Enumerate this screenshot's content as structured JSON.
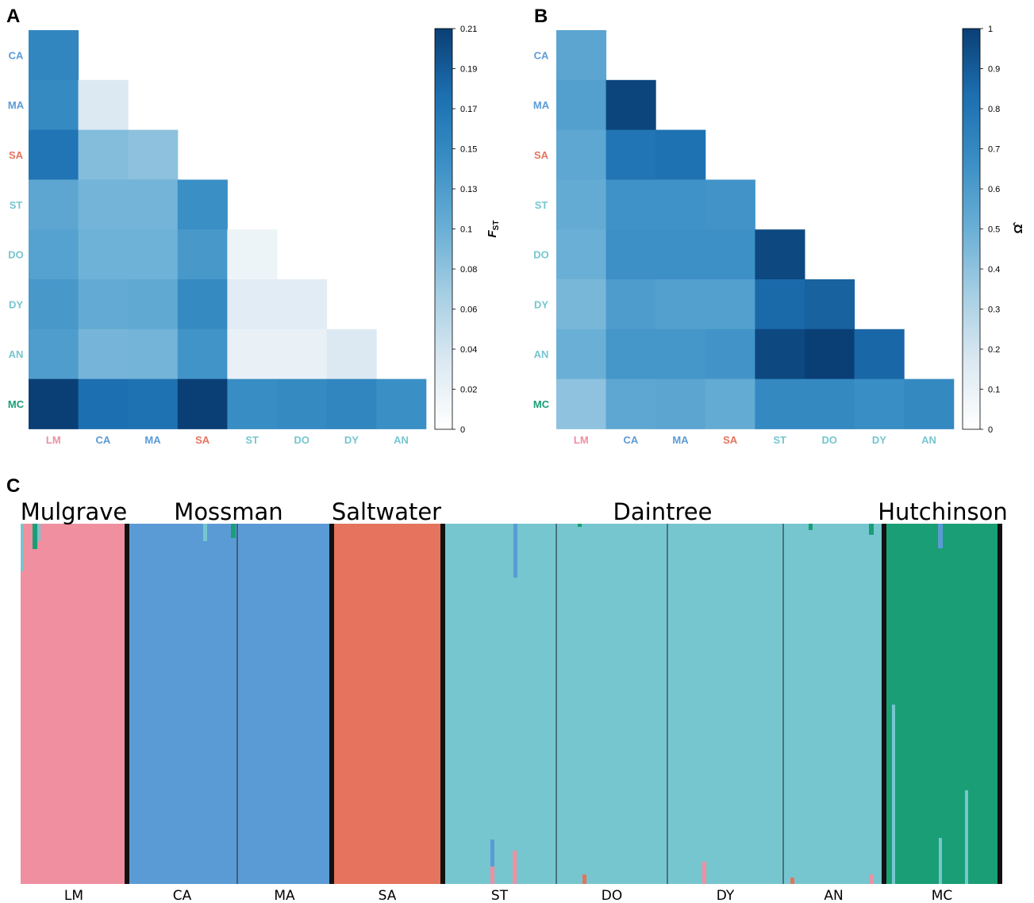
{
  "panels": {
    "a": {
      "letter": "A"
    },
    "b": {
      "letter": "B"
    },
    "c": {
      "letter": "C"
    }
  },
  "populations": [
    "LM",
    "CA",
    "MA",
    "SA",
    "ST",
    "DO",
    "DY",
    "AN",
    "MC"
  ],
  "population_colors": {
    "LM": "#ef8fa0",
    "CA": "#5b9bd5",
    "MA": "#5b9bd5",
    "SA": "#e5735d",
    "ST": "#76c6cf",
    "DO": "#76c6cf",
    "DY": "#76c6cf",
    "AN": "#76c6cf",
    "MC": "#1a9e76"
  },
  "colormap": [
    "#ffffff",
    "#dce9f2",
    "#a7cfe3",
    "#6aafd6",
    "#3a8fc5",
    "#1c6fb0",
    "#0a3f75"
  ],
  "chart_data": [
    {
      "type": "heatmap",
      "id": "fst",
      "colorbar_title": "F",
      "colorbar_title_sub": "ST",
      "colorbar_ticks": [
        "0.21",
        "0.19",
        "0.17",
        "0.15",
        "0.13",
        "0.1",
        "0.08",
        "0.06",
        "0.04",
        "0.02",
        "0"
      ],
      "range": [
        0,
        0.21
      ],
      "rows": [
        "CA",
        "MA",
        "SA",
        "ST",
        "DO",
        "DY",
        "AN",
        "MC"
      ],
      "cols": [
        "LM",
        "CA",
        "MA",
        "SA",
        "ST",
        "DO",
        "DY",
        "AN"
      ],
      "values": [
        [
          0.15
        ],
        [
          0.145,
          0.035
        ],
        [
          0.168,
          0.09,
          0.085
        ],
        [
          0.115,
          0.1,
          0.1,
          0.14
        ],
        [
          0.12,
          0.102,
          0.102,
          0.13,
          0.018
        ],
        [
          0.13,
          0.11,
          0.112,
          0.145,
          0.03,
          0.03
        ],
        [
          0.125,
          0.098,
          0.1,
          0.135,
          0.022,
          0.022,
          0.035
        ],
        [
          0.21,
          0.175,
          0.172,
          0.21,
          0.142,
          0.145,
          0.15,
          0.14
        ]
      ]
    },
    {
      "type": "heatmap",
      "id": "omega",
      "colorbar_title": "Ω̂",
      "colorbar_ticks": [
        "1",
        "0.9",
        "0.8",
        "0.7",
        "0.6",
        "0.5",
        "0.4",
        "0.3",
        "0.2",
        "0.1",
        "0"
      ],
      "range": [
        0,
        1
      ],
      "rows": [
        "CA",
        "MA",
        "SA",
        "ST",
        "DO",
        "DY",
        "AN",
        "MC"
      ],
      "cols": [
        "LM",
        "CA",
        "MA",
        "SA",
        "ST",
        "DO",
        "DY",
        "AN"
      ],
      "values": [
        [
          0.55
        ],
        [
          0.58,
          0.98
        ],
        [
          0.54,
          0.8,
          0.82
        ],
        [
          0.52,
          0.65,
          0.65,
          0.64
        ],
        [
          0.5,
          0.66,
          0.66,
          0.66,
          0.97
        ],
        [
          0.46,
          0.6,
          0.58,
          0.58,
          0.85,
          0.88
        ],
        [
          0.5,
          0.63,
          0.63,
          0.64,
          0.97,
          1.0,
          0.86
        ],
        [
          0.4,
          0.54,
          0.55,
          0.52,
          0.7,
          0.7,
          0.67,
          0.7
        ]
      ]
    },
    {
      "type": "bar",
      "id": "structure",
      "stacked": true,
      "ylim": [
        0,
        1
      ],
      "regions": [
        "Mulgrave",
        "Mossman",
        "Saltwater",
        "Daintree",
        "Hutchinson"
      ],
      "region_members": [
        [
          "LM"
        ],
        [
          "CA",
          "MA"
        ],
        [
          "SA"
        ],
        [
          "ST",
          "DO",
          "DY",
          "AN"
        ],
        [
          "MC"
        ]
      ],
      "categories": [
        "LM",
        "CA",
        "MA",
        "SA",
        "ST",
        "DO",
        "DY",
        "AN",
        "MC"
      ],
      "series": [
        {
          "values": [
            1.0,
            0.0,
            0.0,
            0.0,
            0.0,
            0.0,
            0.0,
            0.0,
            0.0
          ]
        },
        {
          "values": [
            0.0,
            1.0,
            1.0,
            0.0,
            0.0,
            0.0,
            0.0,
            0.0,
            0.0
          ]
        },
        {
          "values": [
            0.0,
            0.0,
            0.0,
            1.0,
            0.0,
            0.0,
            0.0,
            0.0,
            0.0
          ]
        },
        {
          "values": [
            0.0,
            0.0,
            0.0,
            0.0,
            1.0,
            1.0,
            1.0,
            1.0,
            0.0
          ]
        },
        {
          "values": [
            0.0,
            0.0,
            0.0,
            0.0,
            0.0,
            0.0,
            0.0,
            0.0,
            1.0
          ]
        }
      ]
    }
  ]
}
